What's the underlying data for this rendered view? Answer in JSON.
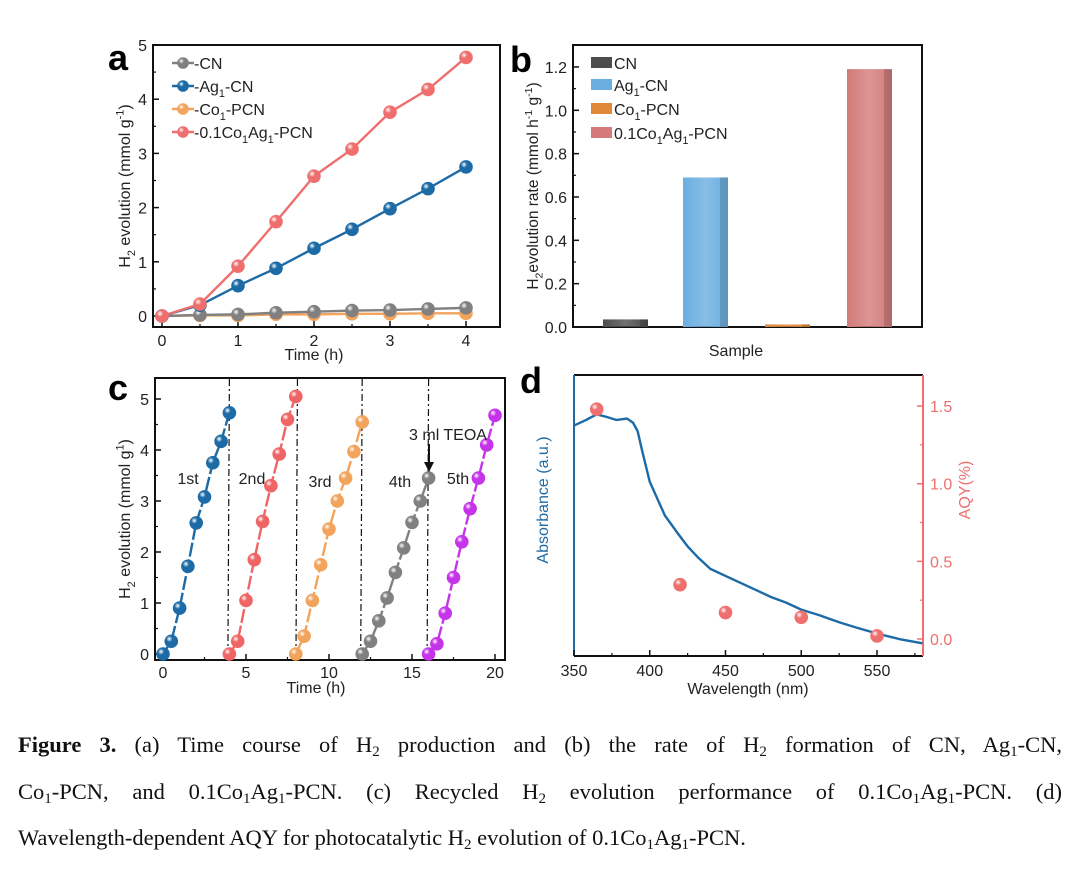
{
  "chart_data": [
    {
      "panel": "a",
      "type": "line",
      "xlabel": "Time (h)",
      "ylabel_parts": [
        [
          "H",
          ""
        ],
        [
          "2",
          "sub"
        ],
        [
          " evolution (mmol g",
          ""
        ],
        [
          "-1",
          "sup"
        ],
        [
          ")",
          ""
        ]
      ],
      "xlim": [
        0,
        4
      ],
      "ylim": [
        0,
        5
      ],
      "xticks": [
        "0",
        "1",
        "2",
        "3",
        "4"
      ],
      "yticks": [
        "0",
        "1",
        "2",
        "3",
        "4",
        "5"
      ],
      "x": [
        0,
        0.5,
        1,
        1.5,
        2,
        2.5,
        3,
        3.5,
        4
      ],
      "legend_position": "top-left",
      "series": [
        {
          "name_parts": [
            [
              "-CN",
              ""
            ]
          ],
          "color": "#808080",
          "values": [
            0,
            0.02,
            0.03,
            0.06,
            0.08,
            0.1,
            0.11,
            0.13,
            0.15
          ]
        },
        {
          "name_parts": [
            [
              "-Ag",
              ""
            ],
            [
              "1",
              "sub"
            ],
            [
              "-CN",
              ""
            ]
          ],
          "color": "#1c6aa6",
          "values": [
            0,
            0.2,
            0.56,
            0.88,
            1.25,
            1.6,
            1.98,
            2.35,
            2.75
          ]
        },
        {
          "name_parts": [
            [
              "-Co",
              ""
            ],
            [
              "1",
              "sub"
            ],
            [
              "-PCN",
              ""
            ]
          ],
          "color": "#f2a35c",
          "values": [
            0,
            0.01,
            0.01,
            0.03,
            0.03,
            0.04,
            0.04,
            0.05,
            0.05
          ]
        },
        {
          "name_parts": [
            [
              "-0.1Co",
              ""
            ],
            [
              "1",
              "sub"
            ],
            [
              "Ag",
              ""
            ],
            [
              "1",
              "sub"
            ],
            [
              "-PCN",
              ""
            ]
          ],
          "color": "#ef6f6f",
          "values": [
            0,
            0.22,
            0.92,
            1.74,
            2.58,
            3.08,
            3.76,
            4.18,
            4.77
          ]
        }
      ]
    },
    {
      "panel": "b",
      "type": "bar",
      "xlabel": "Sample",
      "ylabel_parts": [
        [
          "H",
          ""
        ],
        [
          "2",
          "sub"
        ],
        [
          "evolution rate (mmol h",
          ""
        ],
        [
          "-1",
          "sup"
        ],
        [
          " g",
          ""
        ],
        [
          "-1",
          "sup"
        ],
        [
          ")",
          ""
        ]
      ],
      "ylim": [
        0,
        1.3
      ],
      "yticks": [
        "0.0",
        "0.2",
        "0.4",
        "0.6",
        "0.8",
        "1.0",
        "1.2"
      ],
      "legend_position": "top-left",
      "bars": [
        {
          "name_parts": [
            [
              "CN",
              ""
            ]
          ],
          "color": "#4d4d4d",
          "value": 0.035
        },
        {
          "name_parts": [
            [
              "Ag",
              ""
            ],
            [
              "1",
              "sub"
            ],
            [
              "-CN",
              ""
            ]
          ],
          "color": "#6aaee0",
          "value": 0.69
        },
        {
          "name_parts": [
            [
              "Co",
              ""
            ],
            [
              "1",
              "sub"
            ],
            [
              "-PCN",
              ""
            ]
          ],
          "color": "#e0883a",
          "value": 0.012
        },
        {
          "name_parts": [
            [
              "0.1Co",
              ""
            ],
            [
              "1",
              "sub"
            ],
            [
              "Ag",
              ""
            ],
            [
              "1",
              "sub"
            ],
            [
              "-PCN",
              ""
            ]
          ],
          "color": "#d47a7a",
          "value": 1.19
        }
      ]
    },
    {
      "panel": "c",
      "type": "scatter",
      "xlabel": "Time (h)",
      "ylabel_parts": [
        [
          "H",
          ""
        ],
        [
          "2",
          "sub"
        ],
        [
          " evolution (mmol g",
          ""
        ],
        [
          "1",
          "sup"
        ],
        [
          ")",
          ""
        ]
      ],
      "xlim": [
        0,
        20
      ],
      "ylim": [
        0,
        5.3
      ],
      "xticks": [
        "0",
        "5",
        "10",
        "15",
        "20"
      ],
      "yticks": [
        "0",
        "1",
        "2",
        "3",
        "4",
        "5"
      ],
      "cycle_boundaries": [
        4,
        8.1,
        12,
        16
      ],
      "annotation": "3 ml TEOA",
      "annotation_at": 16,
      "series": [
        {
          "name": "1st",
          "color": "#1c6aa6",
          "start": 0,
          "values": [
            0,
            0.25,
            0.9,
            1.72,
            2.57,
            3.08,
            3.75,
            4.17,
            4.73
          ]
        },
        {
          "name": "2nd",
          "color": "#ef6565",
          "start": 4,
          "values": [
            0,
            0.25,
            1.05,
            1.85,
            2.6,
            3.3,
            3.92,
            4.6,
            5.05
          ]
        },
        {
          "name": "3rd",
          "color": "#f2a35c",
          "start": 8,
          "values": [
            0,
            0.35,
            1.05,
            1.75,
            2.45,
            3.0,
            3.45,
            3.97,
            4.55
          ]
        },
        {
          "name": "4th",
          "color": "#808080",
          "start": 12,
          "values": [
            0,
            0.25,
            0.65,
            1.1,
            1.6,
            2.08,
            2.58,
            3.0,
            3.45
          ]
        },
        {
          "name": "5th",
          "color": "#c634ea",
          "start": 16,
          "values": [
            0,
            0.2,
            0.8,
            1.5,
            2.2,
            2.85,
            3.45,
            4.1,
            4.68
          ]
        }
      ]
    },
    {
      "panel": "d",
      "type": "line",
      "xlabel": "Wavelength (nm)",
      "ylabel_left": "Absorbance (a.u.)",
      "ylabel_right": "AQY(%)",
      "xlim": [
        350,
        580
      ],
      "xticks": [
        "350",
        "400",
        "450",
        "500",
        "550"
      ],
      "yticks_right": [
        "0.0",
        "0.5",
        "1.0",
        "1.5"
      ],
      "absorbance": {
        "color": "#1c6aa6",
        "x": [
          350,
          358,
          365,
          372,
          378,
          385,
          389,
          392,
          395,
          400,
          405,
          410,
          418,
          425,
          432,
          440,
          450,
          460,
          470,
          480,
          490,
          500,
          512,
          525,
          537,
          550,
          565,
          580
        ],
        "y": [
          0.82,
          0.84,
          0.86,
          0.85,
          0.84,
          0.845,
          0.83,
          0.8,
          0.73,
          0.62,
          0.56,
          0.5,
          0.44,
          0.39,
          0.35,
          0.31,
          0.285,
          0.26,
          0.235,
          0.21,
          0.19,
          0.165,
          0.145,
          0.12,
          0.1,
          0.08,
          0.06,
          0.045
        ]
      },
      "aqy": {
        "color": "#ef6f6f",
        "x": [
          365,
          420,
          450,
          500,
          550
        ],
        "y": [
          1.48,
          0.35,
          0.17,
          0.14,
          0.02
        ]
      }
    }
  ],
  "panel_labels": [
    "a",
    "b",
    "c",
    "d"
  ],
  "caption": [
    [
      [
        "Figure 3.",
        "b"
      ],
      [
        " (a) Time course of H",
        ""
      ],
      [
        "2",
        "sub"
      ],
      [
        " production and (b) the rate of H",
        ""
      ],
      [
        "2",
        "sub"
      ],
      [
        " formation of CN, Ag",
        ""
      ],
      [
        "1",
        "sub"
      ],
      [
        "-CN,",
        ""
      ]
    ],
    [
      [
        "Co",
        ""
      ],
      [
        "1",
        "sub"
      ],
      [
        "-PCN, and 0.1Co",
        ""
      ],
      [
        "1",
        "sub"
      ],
      [
        "Ag",
        ""
      ],
      [
        "1",
        "sub"
      ],
      [
        "-PCN. (c) Recycled H",
        ""
      ],
      [
        "2",
        "sub"
      ],
      [
        " evolution performance of 0.1Co",
        ""
      ],
      [
        "1",
        "sub"
      ],
      [
        "Ag",
        ""
      ],
      [
        "1",
        "sub"
      ],
      [
        "-PCN. (d)",
        ""
      ]
    ],
    [
      [
        "Wavelength-dependent AQY for photocatalytic H",
        ""
      ],
      [
        "2",
        "sub"
      ],
      [
        " evolution of 0.1Co",
        ""
      ],
      [
        "1",
        "sub"
      ],
      [
        "Ag",
        ""
      ],
      [
        "1",
        "sub"
      ],
      [
        "-PCN.",
        ""
      ]
    ]
  ]
}
